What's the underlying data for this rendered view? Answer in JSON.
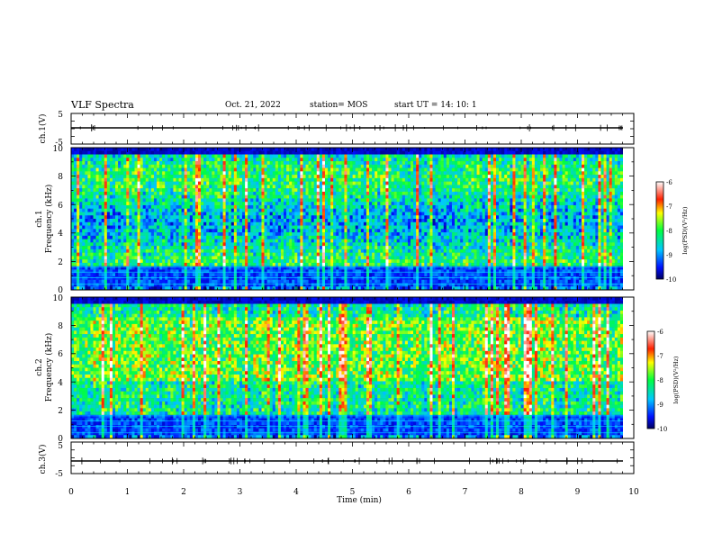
{
  "header": {
    "title": "VLF Spectra",
    "date": "Oct. 21, 2022",
    "station": "station= MOS",
    "start_ut": "start  UT =   14: 10: 1"
  },
  "chart_data": [
    {
      "type": "line",
      "panel": "ch1-waveform",
      "ylabel": "ch.1(V)",
      "ylim": [
        -5,
        5
      ],
      "yticks": [
        "5",
        "-5"
      ],
      "xlim": [
        0,
        10
      ],
      "series": [
        {
          "values_description_level": 0
        }
      ]
    },
    {
      "type": "heatmap",
      "panel": "ch1-spectrogram",
      "ylabel_line1": "ch.1",
      "ylabel_line2": "Frequency (kHz)",
      "ylim": [
        0,
        10
      ],
      "yticks": [
        "0",
        "2",
        "4",
        "6",
        "8",
        "10"
      ],
      "xlim": [
        0,
        9.83
      ],
      "colorbar": {
        "label": "log(PSD)(V²/Hz)",
        "range": [
          -10,
          -6
        ],
        "ticks": [
          "-6",
          "-7",
          "-8",
          "-9",
          "-10"
        ]
      }
    },
    {
      "type": "heatmap",
      "panel": "ch2-spectrogram",
      "ylabel_line1": "ch.2",
      "ylabel_line2": "Frequency (kHz)",
      "ylim": [
        0,
        10
      ],
      "yticks": [
        "0",
        "2",
        "4",
        "6",
        "8",
        "10"
      ],
      "xlim": [
        0,
        9.83
      ],
      "colorbar": {
        "label": "log(PSD)(V²/Hz)",
        "range": [
          -10,
          -6
        ],
        "ticks": [
          "-6",
          "-7",
          "-8",
          "-9",
          "-10"
        ]
      }
    },
    {
      "type": "line",
      "panel": "ch3-waveform",
      "ylabel": "ch.3(V)",
      "ylim": [
        -5,
        5
      ],
      "yticks": [
        "5",
        "-5"
      ],
      "xlim": [
        0,
        10
      ],
      "xlabel": "Time  (min)",
      "xticks": [
        "0",
        "1",
        "2",
        "3",
        "4",
        "5",
        "6",
        "7",
        "8",
        "9",
        "10"
      ]
    }
  ]
}
